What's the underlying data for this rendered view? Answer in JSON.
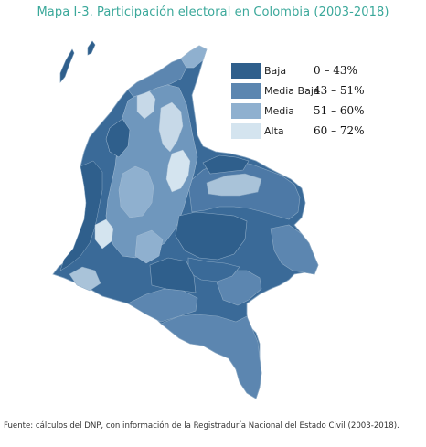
{
  "title": "Mapa I-3. Participación electoral en Colombia (2003-2018)",
  "legend": {
    "items": [
      {
        "label": "Baja",
        "range": "0 – 43%",
        "color": "#2f5f8c"
      },
      {
        "label": "Media Baja",
        "range": "43 – 51%",
        "color": "#5c86b0"
      },
      {
        "label": "Media",
        "range": "51 – 60%",
        "color": "#8fb0cf"
      },
      {
        "label": "Alta",
        "range": "60 – 72%",
        "color": "#d4e4ef"
      }
    ]
  },
  "source": "Fuente: cálculos del DNP, con información de la Registraduría Nacional del Estado Civil (2003-2018)."
}
